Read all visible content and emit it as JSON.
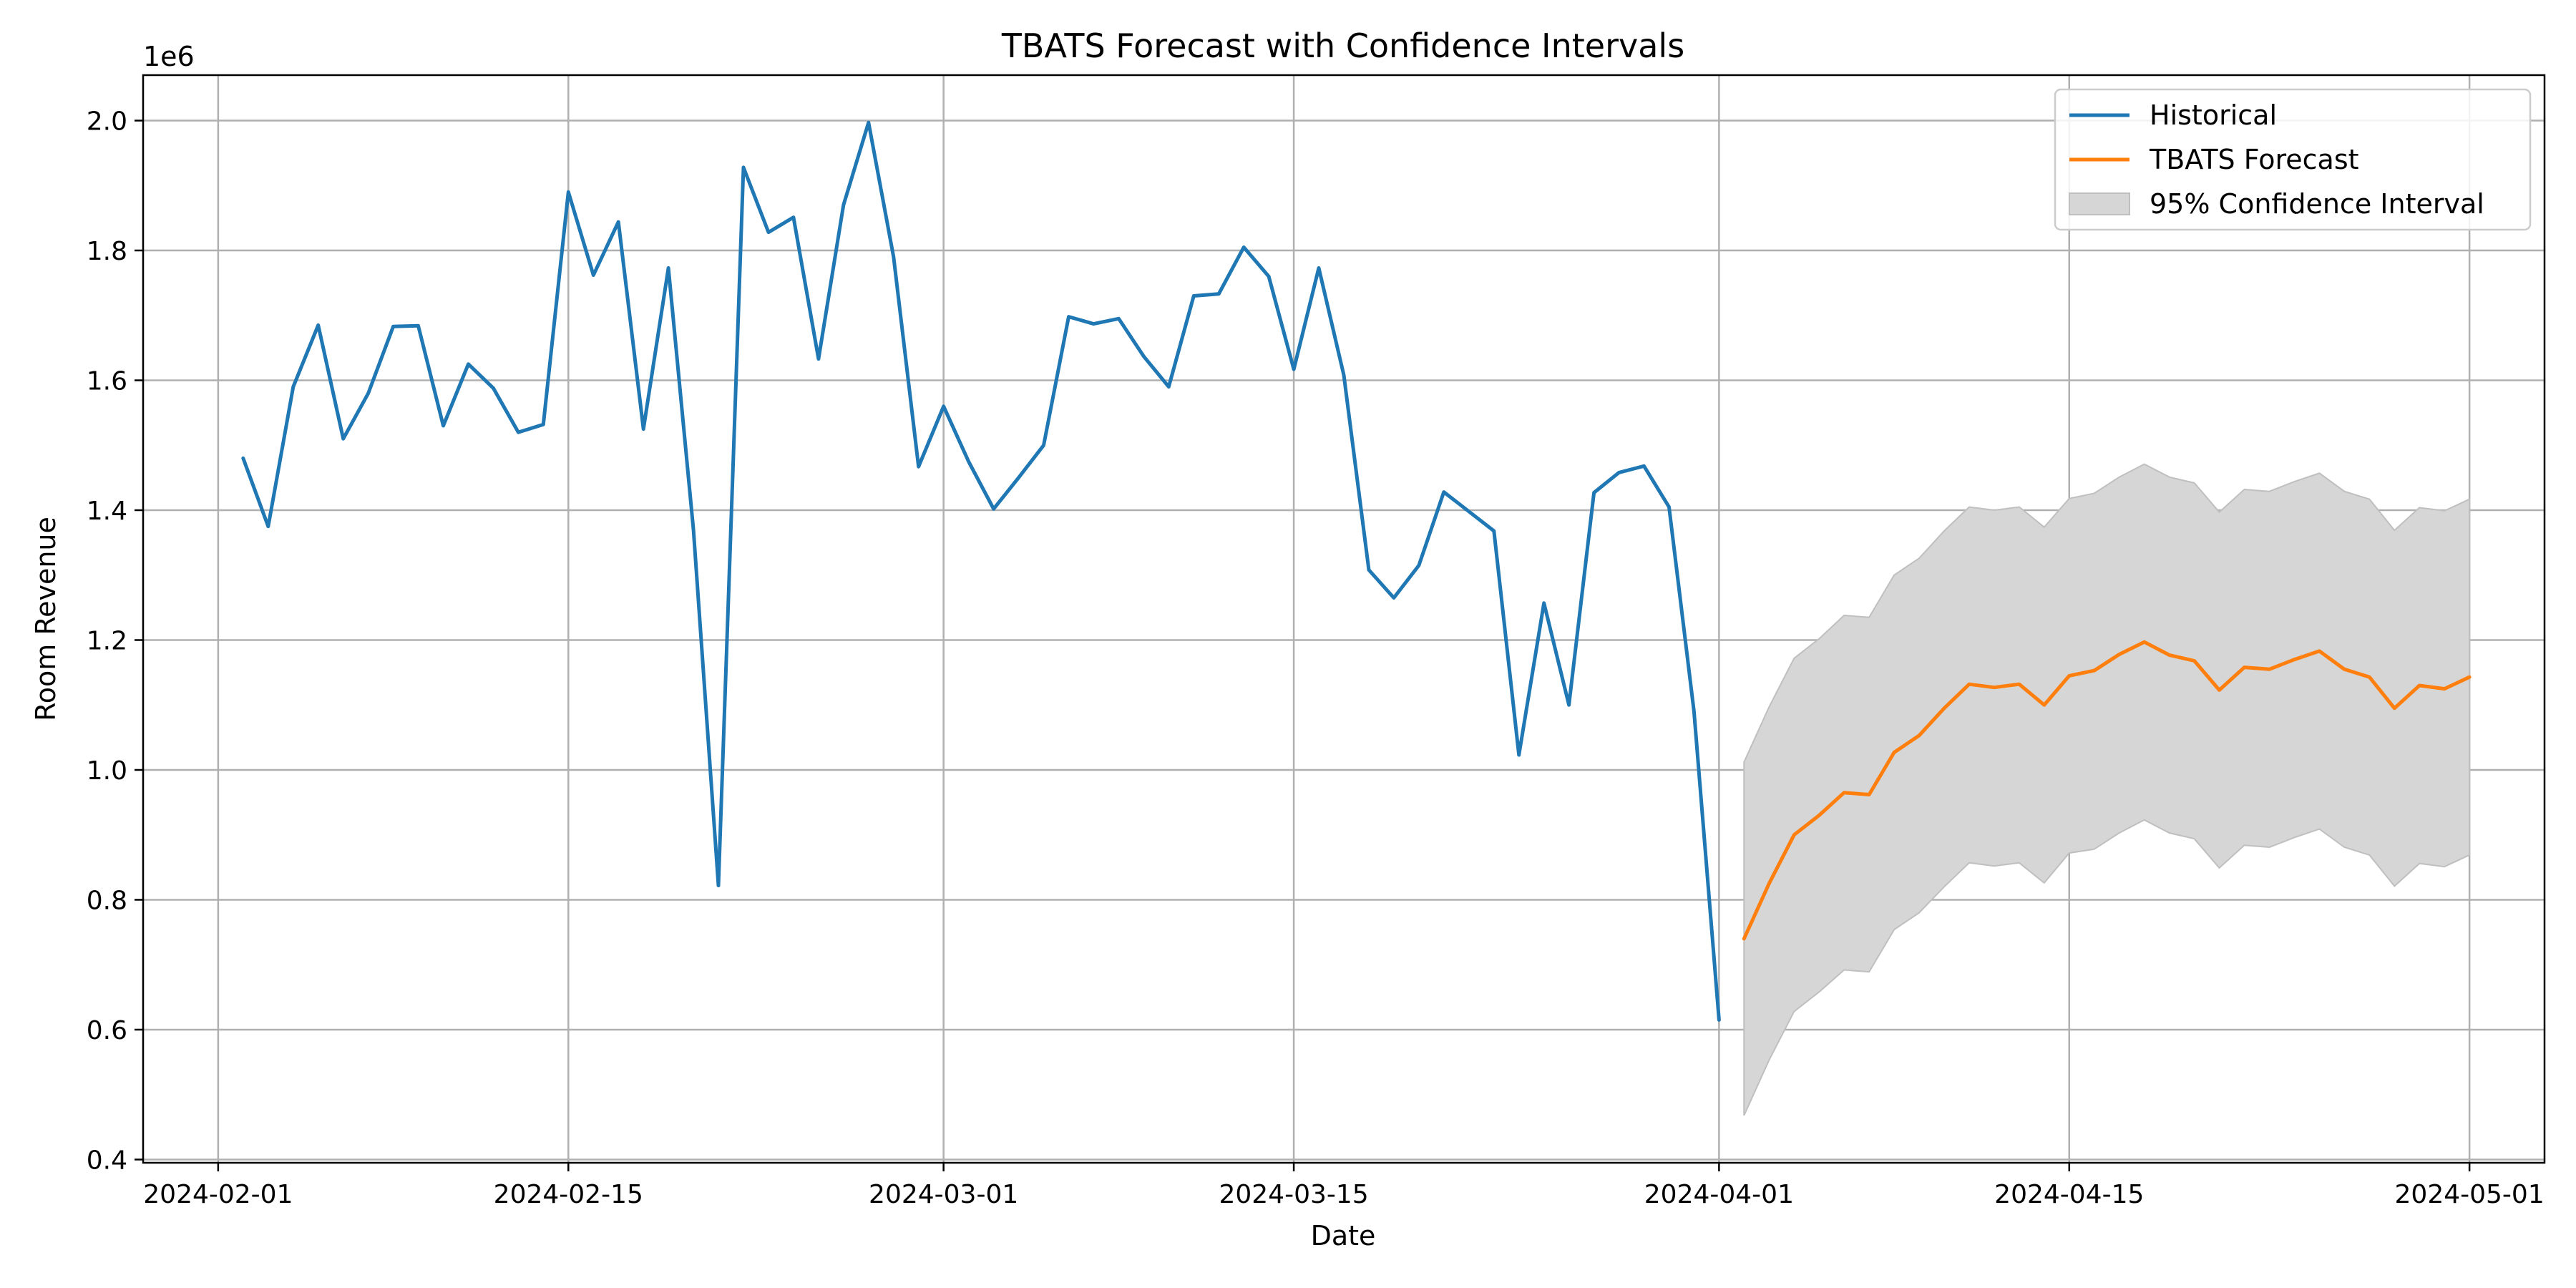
{
  "chart_data": {
    "type": "line",
    "title": "TBATS Forecast with Confidence Intervals",
    "xlabel": "Date",
    "ylabel": "Room Revenue",
    "y_offset_label": "1e6",
    "y_scale_factor": 1000000,
    "xlim": [
      "2024-01-29",
      "2024-05-04"
    ],
    "ylim": [
      0.395,
      2.07
    ],
    "grid": true,
    "legend_position": "top-right",
    "x_ticks": [
      "2024-02-01",
      "2024-02-15",
      "2024-03-01",
      "2024-03-15",
      "2024-04-01",
      "2024-04-15",
      "2024-05-01"
    ],
    "y_ticks": [
      0.4,
      0.6,
      0.8,
      1.0,
      1.2,
      1.4,
      1.6,
      1.8,
      2.0
    ],
    "y_tick_labels": [
      "0.4",
      "0.6",
      "0.8",
      "1.0",
      "1.2",
      "1.4",
      "1.6",
      "1.8",
      "2.0"
    ],
    "colors": {
      "historical": "#1f77b4",
      "forecast": "#ff7f0e",
      "interval_fill": "#d6d6d6",
      "interval_edge": "#bfbfbf",
      "grid": "#b0b0b0"
    },
    "series": [
      {
        "name": "Historical",
        "x": [
          "2024-02-02",
          "2024-02-03",
          "2024-02-04",
          "2024-02-05",
          "2024-02-06",
          "2024-02-07",
          "2024-02-08",
          "2024-02-09",
          "2024-02-10",
          "2024-02-11",
          "2024-02-12",
          "2024-02-13",
          "2024-02-14",
          "2024-02-15",
          "2024-02-16",
          "2024-02-17",
          "2024-02-18",
          "2024-02-19",
          "2024-02-20",
          "2024-02-21",
          "2024-02-22",
          "2024-02-23",
          "2024-02-24",
          "2024-02-25",
          "2024-02-26",
          "2024-02-27",
          "2024-02-28",
          "2024-02-29",
          "2024-03-01",
          "2024-03-02",
          "2024-03-03",
          "2024-03-04",
          "2024-03-05",
          "2024-03-06",
          "2024-03-07",
          "2024-03-08",
          "2024-03-09",
          "2024-03-10",
          "2024-03-11",
          "2024-03-12",
          "2024-03-13",
          "2024-03-14",
          "2024-03-15",
          "2024-03-16",
          "2024-03-17",
          "2024-03-18",
          "2024-03-19",
          "2024-03-20",
          "2024-03-21",
          "2024-03-22",
          "2024-03-23",
          "2024-03-24",
          "2024-03-25",
          "2024-03-26",
          "2024-03-27",
          "2024-03-28",
          "2024-03-29",
          "2024-03-30",
          "2024-03-31",
          "2024-04-01"
        ],
        "values": [
          1.48,
          1.375,
          1.59,
          1.685,
          1.51,
          1.58,
          1.683,
          1.684,
          1.53,
          1.625,
          1.588,
          1.52,
          1.532,
          1.89,
          1.762,
          1.844,
          1.525,
          1.773,
          1.37,
          0.822,
          1.928,
          1.828,
          1.851,
          1.633,
          1.87,
          1.997,
          1.79,
          1.467,
          1.56,
          1.475,
          1.402,
          1.45,
          1.5,
          1.698,
          1.687,
          1.695,
          1.637,
          1.59,
          1.73,
          1.733,
          1.805,
          1.76,
          1.617,
          1.773,
          1.608,
          1.308,
          1.265,
          1.315,
          1.428,
          1.398,
          1.368,
          1.023,
          1.257,
          1.1,
          1.427,
          1.458,
          1.468,
          1.405,
          1.09,
          0.615
        ]
      },
      {
        "name": "TBATS Forecast",
        "x": [
          "2024-04-02",
          "2024-04-03",
          "2024-04-04",
          "2024-04-05",
          "2024-04-06",
          "2024-04-07",
          "2024-04-08",
          "2024-04-09",
          "2024-04-10",
          "2024-04-11",
          "2024-04-12",
          "2024-04-13",
          "2024-04-14",
          "2024-04-15",
          "2024-04-16",
          "2024-04-17",
          "2024-04-18",
          "2024-04-19",
          "2024-04-20",
          "2024-04-21",
          "2024-04-22",
          "2024-04-23",
          "2024-04-24",
          "2024-04-25",
          "2024-04-26",
          "2024-04-27",
          "2024-04-28",
          "2024-04-29",
          "2024-04-30",
          "2024-05-01"
        ],
        "values": [
          0.74,
          0.825,
          0.9,
          0.93,
          0.965,
          0.962,
          1.027,
          1.053,
          1.095,
          1.132,
          1.127,
          1.132,
          1.1,
          1.145,
          1.153,
          1.178,
          1.197,
          1.177,
          1.168,
          1.123,
          1.158,
          1.155,
          1.17,
          1.183,
          1.155,
          1.143,
          1.095,
          1.13,
          1.125,
          1.143
        ]
      }
    ],
    "interval": {
      "name": "95% Confidence Interval",
      "x": [
        "2024-04-02",
        "2024-04-03",
        "2024-04-04",
        "2024-04-05",
        "2024-04-06",
        "2024-04-07",
        "2024-04-08",
        "2024-04-09",
        "2024-04-10",
        "2024-04-11",
        "2024-04-12",
        "2024-04-13",
        "2024-04-14",
        "2024-04-15",
        "2024-04-16",
        "2024-04-17",
        "2024-04-18",
        "2024-04-19",
        "2024-04-20",
        "2024-04-21",
        "2024-04-22",
        "2024-04-23",
        "2024-04-24",
        "2024-04-25",
        "2024-04-26",
        "2024-04-27",
        "2024-04-28",
        "2024-04-29",
        "2024-04-30",
        "2024-05-01"
      ],
      "lower": [
        0.468,
        0.553,
        0.628,
        0.658,
        0.692,
        0.689,
        0.754,
        0.78,
        0.82,
        0.857,
        0.852,
        0.857,
        0.826,
        0.872,
        0.878,
        0.903,
        0.923,
        0.903,
        0.894,
        0.849,
        0.884,
        0.881,
        0.896,
        0.909,
        0.881,
        0.869,
        0.821,
        0.856,
        0.851,
        0.869
      ],
      "upper": [
        1.012,
        1.097,
        1.172,
        1.202,
        1.238,
        1.235,
        1.3,
        1.326,
        1.368,
        1.405,
        1.4,
        1.405,
        1.374,
        1.418,
        1.426,
        1.451,
        1.471,
        1.451,
        1.442,
        1.397,
        1.432,
        1.429,
        1.444,
        1.457,
        1.429,
        1.417,
        1.369,
        1.404,
        1.399,
        1.417
      ]
    }
  }
}
